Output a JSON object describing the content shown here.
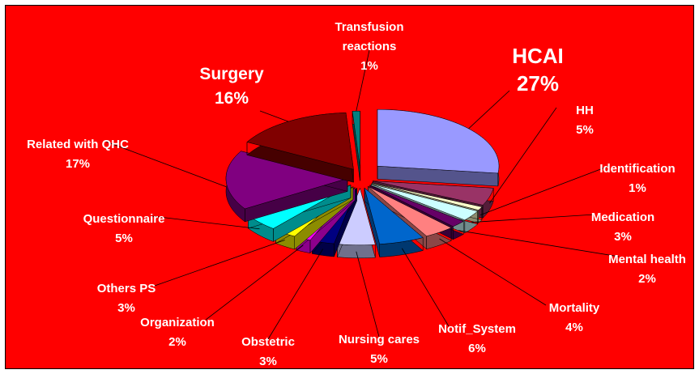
{
  "chart_data": {
    "type": "pie3d",
    "categories": [
      "HCAI",
      "HH",
      "Identification",
      "Medication",
      "Mental health",
      "Mortality",
      "Notif_System",
      "Nursing cares",
      "Obstetric",
      "Organization",
      "Others PS",
      "Questionnaire",
      "Related with QHC",
      "Surgery",
      "Transfusion reactions"
    ],
    "values": [
      27,
      5,
      1,
      3,
      2,
      4,
      6,
      5,
      3,
      2,
      3,
      5,
      17,
      16,
      1
    ],
    "value_labels": [
      "27%",
      "5%",
      "1%",
      "3%",
      "2%",
      "4%",
      "6%",
      "5%",
      "3%",
      "2%",
      "3%",
      "5%",
      "17%",
      "16%",
      "1%"
    ],
    "colors": [
      "#9999ff",
      "#993366",
      "#ffffcc",
      "#ccffff",
      "#660066",
      "#ff8080",
      "#0066cc",
      "#ccccff",
      "#000080",
      "#ff00ff",
      "#ffff00",
      "#00ffff",
      "#800080",
      "#800000",
      "#008080"
    ]
  }
}
